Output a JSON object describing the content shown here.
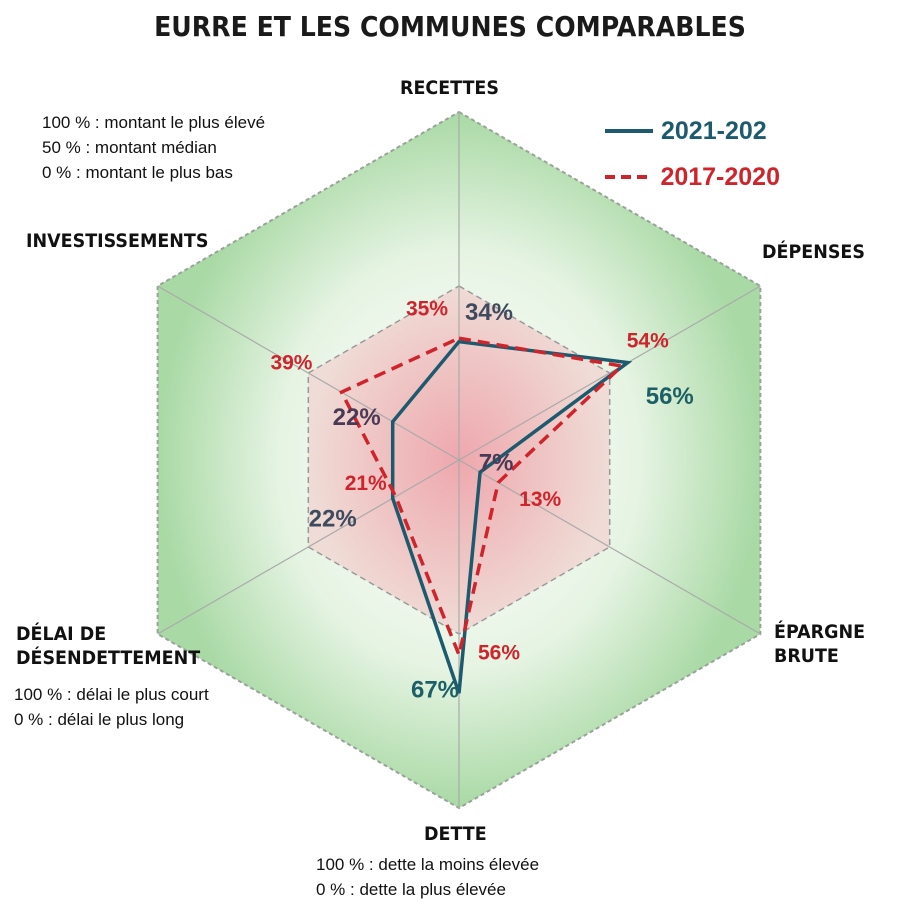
{
  "chart_data": {
    "type": "radar",
    "title": "EURRE ET LES COMMUNES COMPARABLES",
    "axes": [
      "RECETTES",
      "DÉPENSES",
      "ÉPARGNE BRUTE",
      "DETTE",
      "DÉLAI DE DÉSENDETTEMENT",
      "INVESTISSEMENTS"
    ],
    "range": [
      0,
      100
    ],
    "unit": "%",
    "series": [
      {
        "name": "2021-202",
        "color": "#1d5a6e",
        "line": "solid",
        "values": [
          34,
          56,
          7,
          67,
          22,
          22
        ],
        "label_colors": [
          "#3e4a5e",
          "#1d5f66",
          "#4a3a55",
          "#1d5f66",
          "#3e4a5e",
          "#4a3a55"
        ]
      },
      {
        "name": "2017-2020",
        "color": "#d0242c",
        "line": "dashed",
        "values": [
          35,
          54,
          13,
          56,
          21,
          39
        ]
      }
    ],
    "notes": {
      "scale": [
        "100 % : montant le plus élevé",
        "50 % : montant médian",
        "0 % : montant le plus bas"
      ],
      "delai": [
        "100 % : délai le plus court",
        "0 % : délai le plus long"
      ],
      "dette": [
        "100 % : dette la moins élevée",
        "0 % : dette la plus élevée"
      ]
    },
    "colors": {
      "outer_fill": "#9fd49c",
      "inner_fill": "#e79aa0"
    }
  }
}
